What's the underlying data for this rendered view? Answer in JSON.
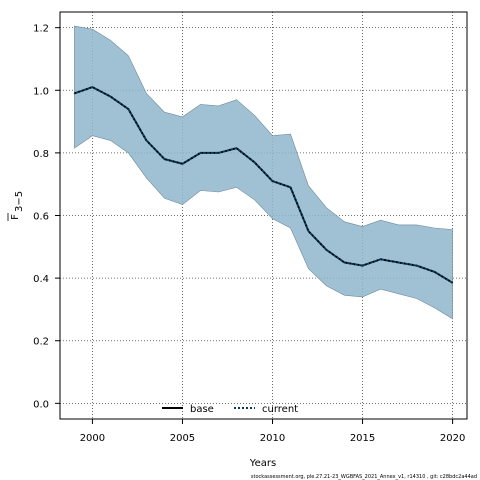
{
  "chart_data": {
    "type": "line",
    "xlabel": "Years",
    "ylabel_main": "F",
    "ylabel_sub": "3−5",
    "xlim": [
      1998.2,
      2020.8
    ],
    "ylim": [
      -0.05,
      1.25
    ],
    "xticks": [
      2000,
      2005,
      2010,
      2015,
      2020
    ],
    "yticks": [
      0.0,
      0.2,
      0.4,
      0.6,
      0.8,
      1.0,
      1.2
    ],
    "grid": true,
    "legend_position": "bottom-center",
    "band_color": "#8fb6cc",
    "colors": {
      "base": "#000000",
      "current": "#003a5e"
    },
    "x": [
      1999,
      2000,
      2001,
      2002,
      2003,
      2004,
      2005,
      2006,
      2007,
      2008,
      2009,
      2010,
      2011,
      2012,
      2013,
      2014,
      2015,
      2016,
      2017,
      2018,
      2019,
      2020
    ],
    "series": [
      {
        "name": "base",
        "values": [
          0.99,
          1.01,
          0.98,
          0.94,
          0.84,
          0.78,
          0.765,
          0.8,
          0.8,
          0.815,
          0.77,
          0.71,
          0.69,
          0.55,
          0.49,
          0.45,
          0.44,
          0.46,
          0.45,
          0.44,
          0.42,
          0.385
        ]
      },
      {
        "name": "current",
        "values": [
          0.99,
          1.01,
          0.98,
          0.94,
          0.84,
          0.78,
          0.765,
          0.8,
          0.8,
          0.815,
          0.77,
          0.71,
          0.69,
          0.55,
          0.49,
          0.45,
          0.44,
          0.46,
          0.45,
          0.44,
          0.42,
          0.385
        ]
      }
    ],
    "ci_upper": [
      1.205,
      1.195,
      1.16,
      1.11,
      0.99,
      0.93,
      0.915,
      0.955,
      0.95,
      0.97,
      0.92,
      0.855,
      0.86,
      0.695,
      0.625,
      0.58,
      0.565,
      0.585,
      0.57,
      0.57,
      0.56,
      0.555
    ],
    "ci_lower": [
      0.815,
      0.855,
      0.84,
      0.8,
      0.72,
      0.655,
      0.635,
      0.68,
      0.675,
      0.69,
      0.65,
      0.59,
      0.56,
      0.43,
      0.375,
      0.345,
      0.34,
      0.365,
      0.35,
      0.335,
      0.305,
      0.27
    ]
  },
  "footer": {
    "text": "stockassessment.org, ple.27.21-23_WGBFAS_2021_Annex_v1, r14310 , git: c28bdc2a44ad"
  }
}
